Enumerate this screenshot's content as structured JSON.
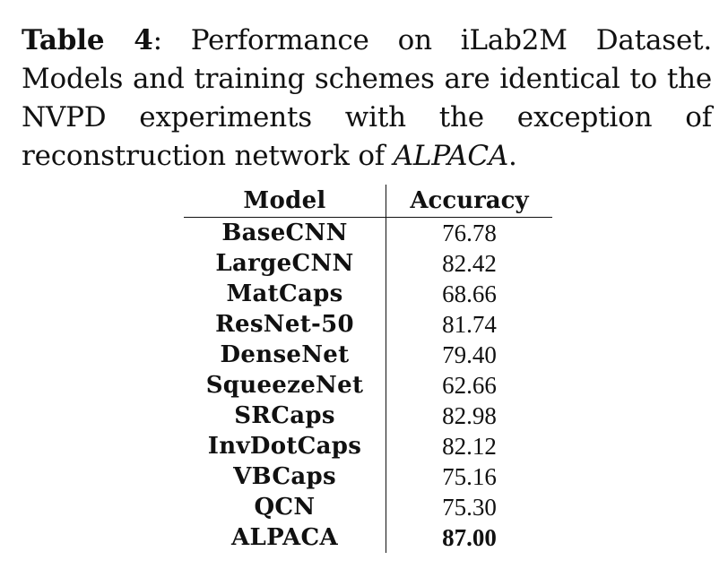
{
  "caption": {
    "label": "Table 4",
    "text_before": ": Performance on iLab2M Dataset. Models and training schemes are identical to the NVPD experiments with the exception of reconstruction network of ",
    "model_name": "ALPACA",
    "text_after": "."
  },
  "table": {
    "headers": {
      "model": "Model",
      "accuracy": "Accuracy"
    },
    "rows": [
      {
        "model": "BaseCNN",
        "accuracy": "76.78",
        "bold": false
      },
      {
        "model": "LargeCNN",
        "accuracy": "82.42",
        "bold": false
      },
      {
        "model": "MatCaps",
        "accuracy": "68.66",
        "bold": false
      },
      {
        "model": "ResNet-50",
        "accuracy": "81.74",
        "bold": false
      },
      {
        "model": "DenseNet",
        "accuracy": "79.40",
        "bold": false
      },
      {
        "model": "SqueezeNet",
        "accuracy": "62.66",
        "bold": false
      },
      {
        "model": "SRCaps",
        "accuracy": "82.98",
        "bold": false
      },
      {
        "model": "InvDotCaps",
        "accuracy": "82.12",
        "bold": false
      },
      {
        "model": "VBCaps",
        "accuracy": "75.16",
        "bold": false
      },
      {
        "model": "QCN",
        "accuracy": "75.30",
        "bold": false
      },
      {
        "model": "ALPACA",
        "accuracy": "87.00",
        "bold": true
      }
    ]
  }
}
